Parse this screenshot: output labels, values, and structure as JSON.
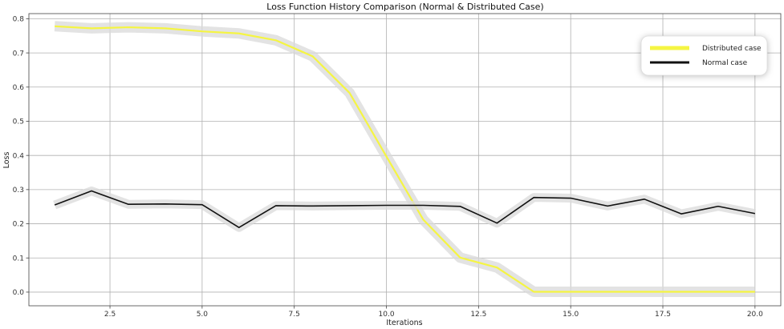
{
  "chart_data": {
    "type": "line",
    "title": "Loss Function History Comparison (Normal & Distributed Case)",
    "xlabel": "Iterations",
    "ylabel": "Loss",
    "xlim": [
      0.3,
      20.7
    ],
    "ylim": [
      -0.04,
      0.815
    ],
    "xticks": [
      2.5,
      5.0,
      7.5,
      10.0,
      12.5,
      15.0,
      17.5,
      20.0
    ],
    "xtick_labels": [
      "2.5",
      "5.0",
      "7.5",
      "10.0",
      "12.5",
      "15.0",
      "17.5",
      "20.0"
    ],
    "yticks": [
      0.0,
      0.1,
      0.2,
      0.3,
      0.4,
      0.5,
      0.6,
      0.7,
      0.8
    ],
    "ytick_labels": [
      "0.0",
      "0.1",
      "0.2",
      "0.3",
      "0.4",
      "0.5",
      "0.6",
      "0.7",
      "0.8"
    ],
    "grid": true,
    "legend_position": "top-right",
    "x": [
      1,
      2,
      3,
      4,
      5,
      6,
      7,
      8,
      9,
      10,
      11,
      12,
      13,
      14,
      15,
      16,
      17,
      18,
      19,
      20
    ],
    "series": [
      {
        "name": "Distributed case",
        "color": "#f5f542",
        "values": [
          0.778,
          0.772,
          0.775,
          0.772,
          0.763,
          0.757,
          0.737,
          0.69,
          0.583,
          0.397,
          0.212,
          0.101,
          0.072,
          0.001,
          0.001,
          0.001,
          0.001,
          0.001,
          0.001,
          0.001
        ]
      },
      {
        "name": "Normal case",
        "color": "#111111",
        "values": [
          0.255,
          0.296,
          0.257,
          0.258,
          0.256,
          0.189,
          0.253,
          0.252,
          0.253,
          0.254,
          0.254,
          0.251,
          0.202,
          0.277,
          0.275,
          0.252,
          0.272,
          0.229,
          0.251,
          0.23
        ]
      }
    ],
    "shadow_color": "#d9d9d9"
  }
}
